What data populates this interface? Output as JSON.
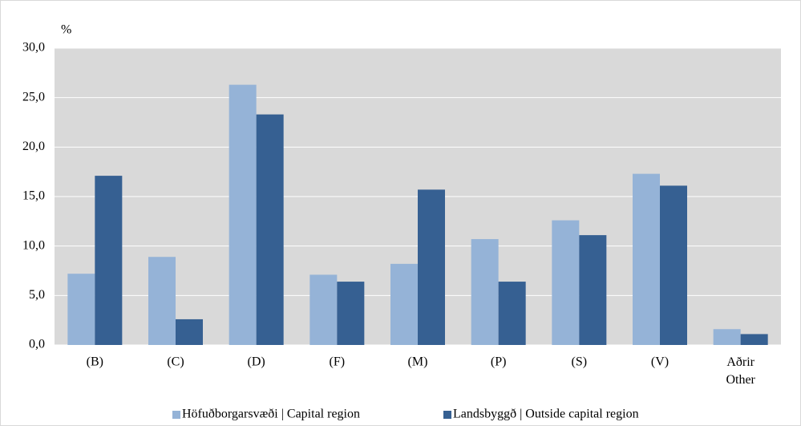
{
  "chart_data": {
    "type": "bar",
    "y_label": "%",
    "categories": [
      "(B)",
      "(C)",
      "(D)",
      "(F)",
      "(M)",
      "(P)",
      "(S)",
      "(V)",
      "Aðrir\nOther"
    ],
    "series": [
      {
        "name": "Höfuðborgarsvæði | Capital region",
        "color": "#95b3d7",
        "values": [
          7.2,
          8.9,
          26.3,
          7.1,
          8.2,
          10.7,
          12.6,
          17.3,
          1.6
        ]
      },
      {
        "name": "Landsbyggð | Outside capital region",
        "color": "#366092",
        "values": [
          17.1,
          2.6,
          23.3,
          6.4,
          15.7,
          6.4,
          11.1,
          16.1,
          1.1
        ]
      }
    ],
    "ylim": [
      0,
      30
    ],
    "yticks": [
      {
        "value": 0,
        "label": "0,0"
      },
      {
        "value": 5,
        "label": "5,0"
      },
      {
        "value": 10,
        "label": "10,0"
      },
      {
        "value": 15,
        "label": "15,0"
      },
      {
        "value": 20,
        "label": "20,0"
      },
      {
        "value": 25,
        "label": "25,0"
      },
      {
        "value": 30,
        "label": "30,0"
      }
    ],
    "grid": true,
    "legend": "bottom"
  }
}
